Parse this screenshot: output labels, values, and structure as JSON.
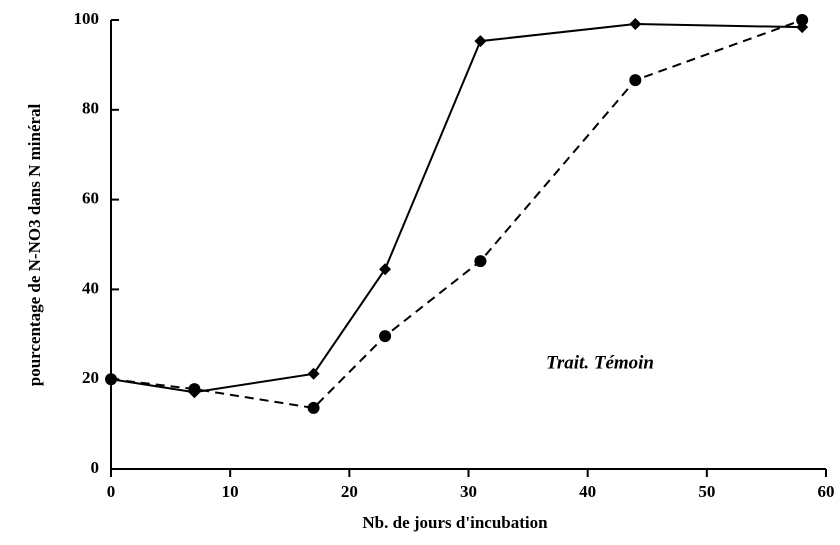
{
  "chart_data": {
    "type": "line",
    "x": [
      0,
      7,
      17,
      23,
      31,
      44,
      58
    ],
    "series": [
      {
        "color": "#000000",
        "marker": "diamond",
        "dashed": false,
        "values": [
          20,
          17.1,
          21.2,
          44.5,
          95.3,
          99.1,
          98.4
        ]
      },
      {
        "color": "#000000",
        "marker": "circle",
        "dashed": true,
        "values": [
          20,
          17.8,
          13.6,
          29.6,
          46.3,
          86.6,
          100
        ]
      }
    ],
    "xlabel": "Nb. de jours d'incubation",
    "ylabel": "pourcentage de N-NO3 dans N minéral",
    "annotation": "Trait. Témoin",
    "xlim": [
      0,
      60
    ],
    "xticks": [
      0,
      10,
      20,
      30,
      40,
      50,
      60
    ],
    "ylim": [
      0,
      100
    ],
    "yticks": [
      0,
      20,
      40,
      60,
      80,
      100
    ],
    "grid": false
  }
}
